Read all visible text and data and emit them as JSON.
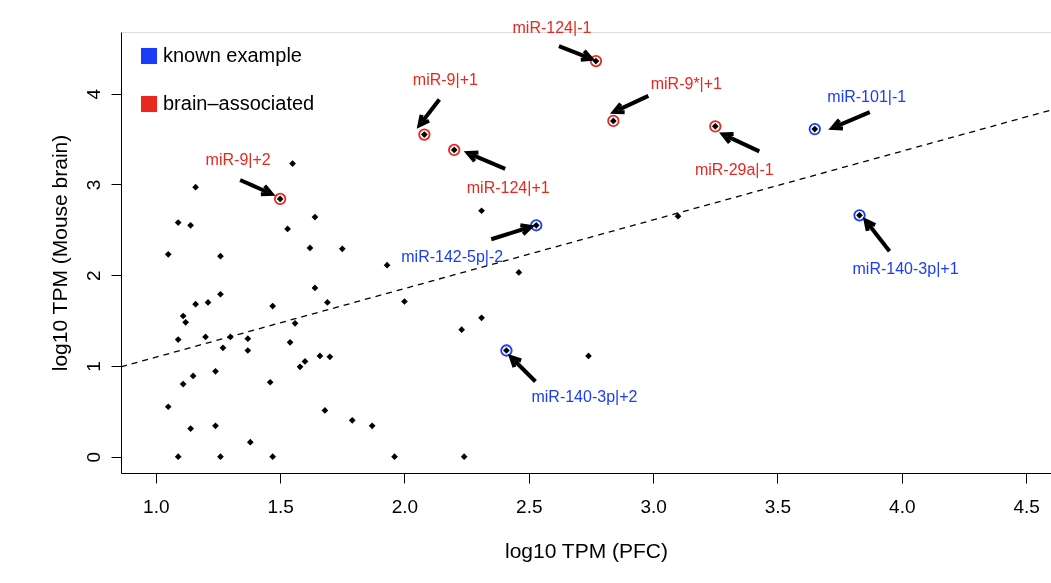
{
  "chart_data": {
    "type": "scatter",
    "xlabel": "log10 TPM (PFC)",
    "ylabel": "log10 TPM (Mouse brain)",
    "xlim": [
      0.86,
      4.6
    ],
    "xticks": [
      {
        "value": 1,
        "label": "1.0"
      },
      1.5,
      {
        "value": 2,
        "label": "2.0"
      },
      2.5,
      {
        "value": 3,
        "label": "3.0"
      },
      3.5,
      {
        "value": 4,
        "label": "4.0"
      },
      4.5
    ],
    "ylim": [
      -0.18,
      4.68
    ],
    "yticks": [
      0,
      1,
      2,
      3,
      4
    ],
    "grid": false,
    "legend": "top left",
    "series": [
      {
        "name": "known example",
        "marker": "circle",
        "color": "#1a3cf5",
        "x": [
          3.65,
          3.83,
          2.53,
          2.41
        ],
        "values": [
          3.61,
          2.66,
          2.55,
          1.17
        ]
      },
      {
        "name": "brain–associated",
        "marker": "circle",
        "color": "#e8281e",
        "x": [
          2.77,
          2.08,
          2.84,
          1.5,
          2.2,
          3.25
        ],
        "values": [
          4.36,
          3.55,
          3.7,
          2.84,
          3.38,
          3.64
        ]
      },
      {
        "marker": "diamond",
        "color": "#000000",
        "x": [
          1.64,
          1.26,
          1.16,
          1.21,
          1.11,
          1.12,
          1.47,
          1.69,
          1.56,
          2.0,
          1.09,
          1.2,
          1.3,
          1.37,
          1.27,
          1.37,
          1.54,
          1.66,
          1.7,
          1.58,
          1.6,
          1.11,
          1.15,
          1.24,
          1.46,
          1.05,
          1.68,
          1.79,
          1.87,
          1.14,
          1.24,
          1.38,
          1.09,
          1.26,
          1.47,
          1.96,
          1.55,
          1.16,
          1.09,
          1.14,
          1.53,
          1.64,
          1.05,
          1.26,
          1.62,
          1.75,
          1.93,
          2.31,
          3.1,
          2.46,
          2.31,
          2.23,
          2.74,
          2.24,
          2.77,
          2.08,
          2.84,
          1.5,
          2.2,
          3.25,
          3.65,
          3.83,
          2.53,
          2.41
        ],
        "values": [
          1.86,
          1.79,
          1.68,
          1.7,
          1.55,
          1.48,
          1.66,
          1.7,
          1.47,
          1.71,
          1.29,
          1.32,
          1.32,
          1.3,
          1.2,
          1.17,
          1.26,
          1.11,
          1.1,
          0.99,
          1.05,
          0.8,
          0.89,
          0.94,
          0.82,
          0.55,
          0.51,
          0.4,
          0.34,
          0.31,
          0.34,
          0.16,
          0.0,
          0.0,
          0.0,
          0.0,
          3.23,
          2.97,
          2.58,
          2.55,
          2.51,
          2.64,
          2.23,
          2.21,
          2.3,
          2.29,
          2.11,
          2.71,
          2.65,
          2.03,
          1.53,
          1.4,
          1.11,
          0.0,
          4.36,
          3.55,
          3.7,
          2.84,
          3.38,
          3.64,
          3.61,
          2.66,
          2.55,
          1.17
        ]
      },
      {
        "type": "line",
        "color": "#000000",
        "line_style": "dashed",
        "marker": "none",
        "x": [
          0.86,
          4.6
        ],
        "values": [
          0.99,
          3.82
        ]
      }
    ],
    "annotations": [
      {
        "text": "miR-124|-1",
        "x": 2.77,
        "y": 4.36
      },
      {
        "text": "miR-9|+1",
        "x": 2.08,
        "y": 3.55
      },
      {
        "text": "miR-9*|+1",
        "x": 2.84,
        "y": 3.7
      },
      {
        "text": "miR-101|-1",
        "x": 3.65,
        "y": 3.61
      },
      {
        "text": "miR-9|+2",
        "x": 1.5,
        "y": 2.84
      },
      {
        "text": "miR-124|+1",
        "x": 2.2,
        "y": 3.38
      },
      {
        "text": "miR-29a|-1",
        "x": 3.25,
        "y": 3.64
      },
      {
        "text": "miR-142-5p|-2",
        "x": 2.53,
        "y": 2.55
      },
      {
        "text": "miR-140-3p|+1",
        "x": 3.83,
        "y": 2.66
      },
      {
        "text": "miR-140-3p|+2",
        "x": 2.41,
        "y": 1.17
      }
    ]
  }
}
